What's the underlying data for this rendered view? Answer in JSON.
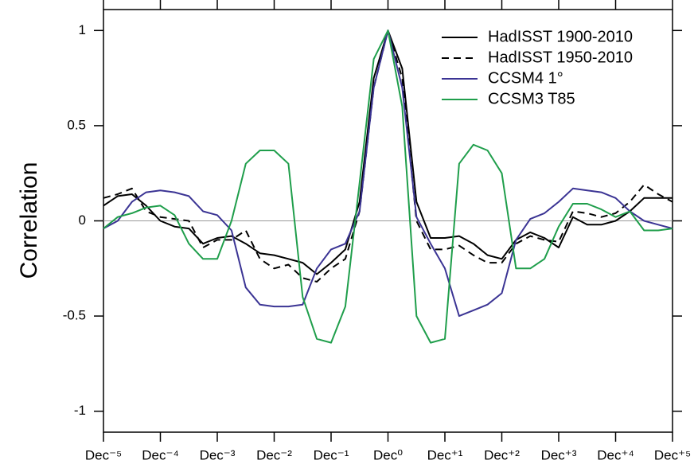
{
  "chart_data": {
    "type": "line",
    "ylabel": "Correlation",
    "x": [
      -60,
      -57,
      -54,
      -51,
      -48,
      -45,
      -42,
      -39,
      -36,
      -33,
      -30,
      -27,
      -24,
      -21,
      -18,
      -15,
      -12,
      -9,
      -6,
      -3,
      0,
      3,
      6,
      9,
      12,
      15,
      18,
      21,
      24,
      27,
      30,
      33,
      36,
      39,
      42,
      45,
      48,
      51,
      54,
      57,
      60
    ],
    "xlim": [
      -60,
      60
    ],
    "xticks": [
      {
        "value": -60,
        "label": "Dec⁻⁵"
      },
      {
        "value": -48,
        "label": "Dec⁻⁴"
      },
      {
        "value": -36,
        "label": "Dec⁻³"
      },
      {
        "value": -24,
        "label": "Dec⁻²"
      },
      {
        "value": -12,
        "label": "Dec⁻¹"
      },
      {
        "value": 0,
        "label": "Dec⁰"
      },
      {
        "value": 12,
        "label": "Dec⁺¹"
      },
      {
        "value": 24,
        "label": "Dec⁺²"
      },
      {
        "value": 36,
        "label": "Dec⁺³"
      },
      {
        "value": 48,
        "label": "Dec⁺⁴"
      },
      {
        "value": 60,
        "label": "Dec⁺⁵"
      }
    ],
    "ylim": [
      -1.11,
      1.11
    ],
    "yticks": [
      -1,
      -0.5,
      0,
      0.5,
      1
    ],
    "zero_line": true,
    "legend": "upper right",
    "series": [
      {
        "name": "HadISST 1900-2010",
        "color": "#000000",
        "dashed": false,
        "values": [
          0.08,
          0.13,
          0.14,
          0.08,
          0.0,
          -0.03,
          -0.04,
          -0.12,
          -0.09,
          -0.08,
          -0.12,
          -0.17,
          -0.18,
          -0.2,
          -0.22,
          -0.28,
          -0.22,
          -0.15,
          0.1,
          0.75,
          1.0,
          0.8,
          0.1,
          -0.09,
          -0.09,
          -0.08,
          -0.12,
          -0.18,
          -0.2,
          -0.1,
          -0.06,
          -0.09,
          -0.14,
          0.02,
          -0.02,
          -0.02,
          0.0,
          0.05,
          0.12,
          0.12,
          0.12
        ]
      },
      {
        "name": "HadISST 1950-2010",
        "color": "#000000",
        "dashed": true,
        "values": [
          0.12,
          0.14,
          0.17,
          0.05,
          0.02,
          0.01,
          0.0,
          -0.14,
          -0.1,
          -0.1,
          -0.05,
          -0.2,
          -0.25,
          -0.23,
          -0.3,
          -0.32,
          -0.25,
          -0.2,
          0.05,
          0.7,
          1.0,
          0.75,
          0.0,
          -0.15,
          -0.15,
          -0.13,
          -0.18,
          -0.22,
          -0.22,
          -0.12,
          -0.08,
          -0.1,
          -0.11,
          0.05,
          0.04,
          0.02,
          0.04,
          0.1,
          0.19,
          0.14,
          0.1
        ]
      },
      {
        "name": "CCSM4 1°",
        "color": "#3b3494",
        "dashed": false,
        "values": [
          -0.04,
          0.0,
          0.1,
          0.15,
          0.16,
          0.15,
          0.13,
          0.05,
          0.03,
          -0.05,
          -0.35,
          -0.44,
          -0.45,
          -0.45,
          -0.44,
          -0.25,
          -0.15,
          -0.12,
          0.05,
          0.7,
          1.0,
          0.7,
          0.02,
          -0.12,
          -0.25,
          -0.5,
          -0.47,
          -0.44,
          -0.38,
          -0.1,
          0.01,
          0.04,
          0.1,
          0.17,
          0.16,
          0.15,
          0.12,
          0.05,
          0.0,
          -0.02,
          -0.04
        ]
      },
      {
        "name": "CCSM3 T85",
        "color": "#1f9e4b",
        "dashed": false,
        "values": [
          -0.04,
          0.02,
          0.04,
          0.07,
          0.08,
          0.03,
          -0.12,
          -0.2,
          -0.2,
          0.0,
          0.3,
          0.37,
          0.37,
          0.3,
          -0.4,
          -0.62,
          -0.64,
          -0.45,
          0.2,
          0.85,
          1.0,
          0.6,
          -0.5,
          -0.64,
          -0.62,
          0.3,
          0.4,
          0.37,
          0.25,
          -0.25,
          -0.25,
          -0.2,
          -0.03,
          0.09,
          0.09,
          0.06,
          0.02,
          0.05,
          -0.05,
          -0.05,
          -0.04
        ]
      }
    ]
  }
}
